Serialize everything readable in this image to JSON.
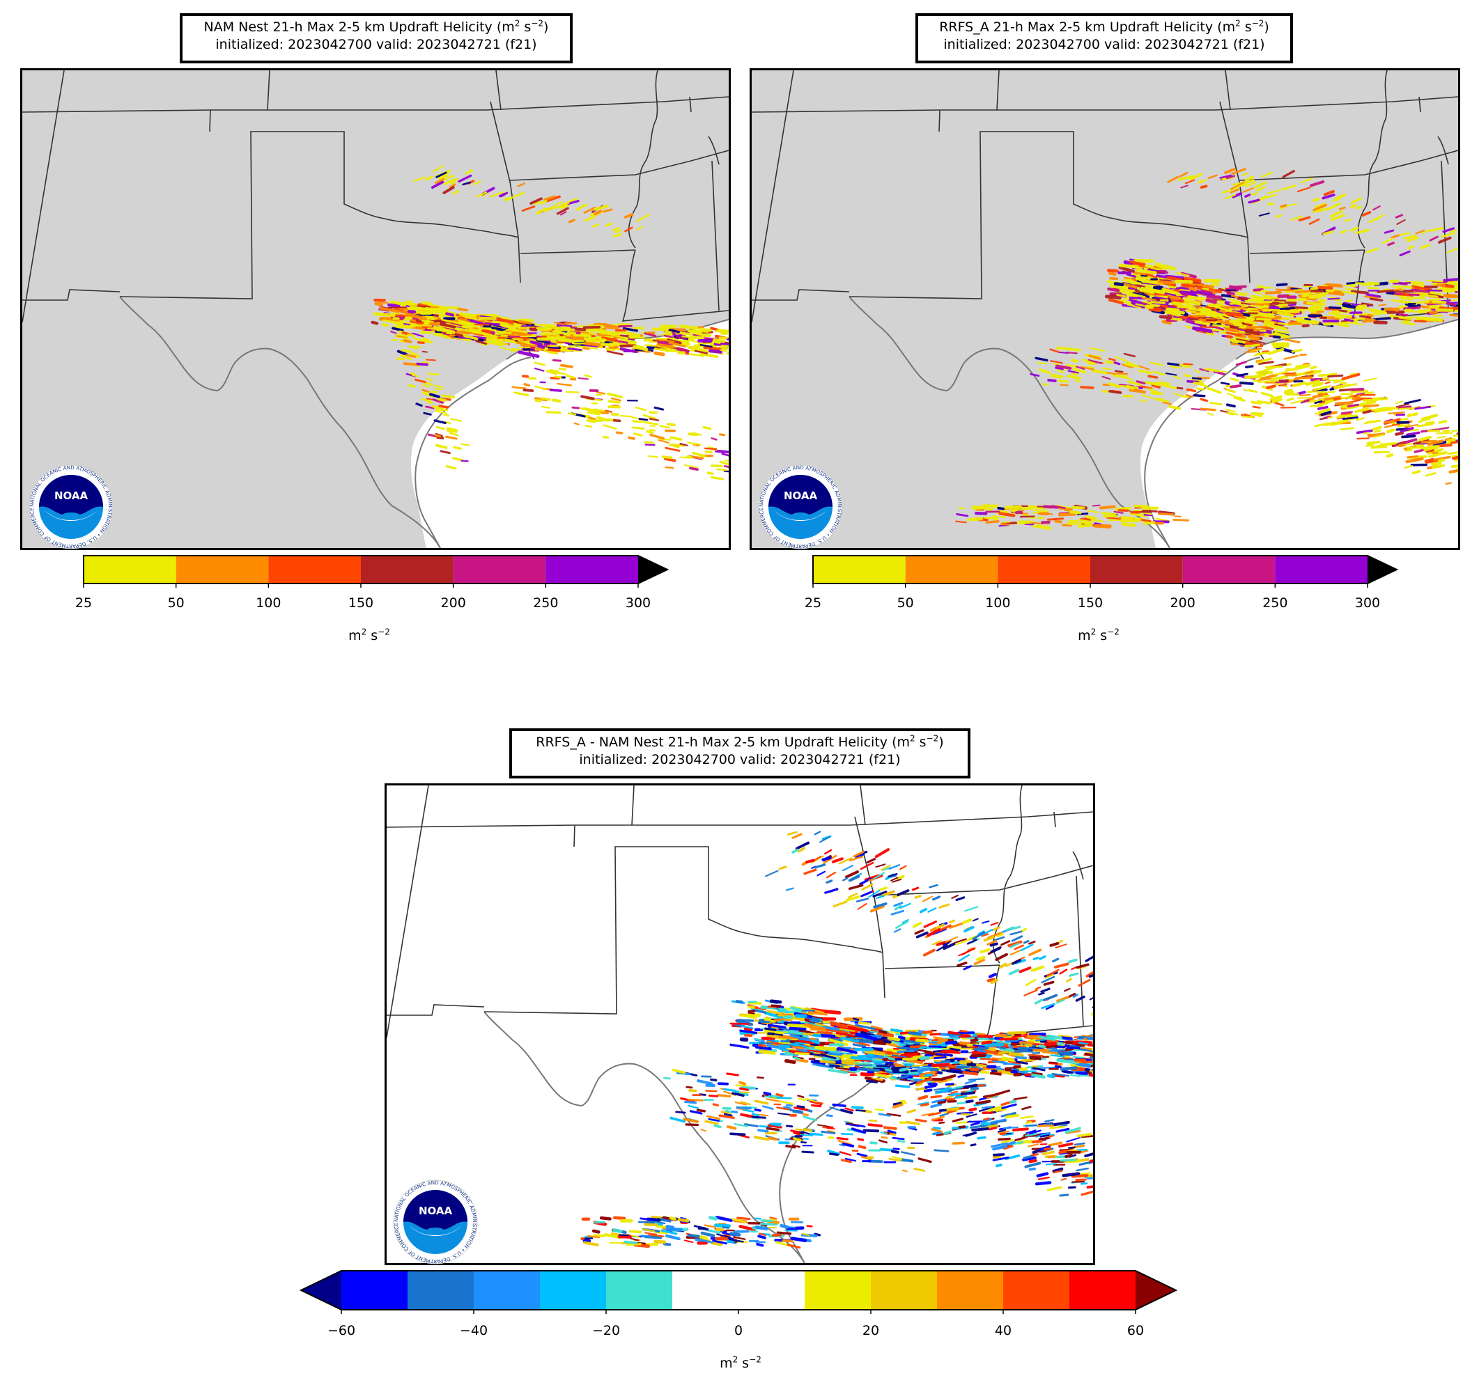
{
  "panels": {
    "nam": {
      "title_line1_pre": "NAM Nest 21-h Max 2-5 km Updraft Helicity (m",
      "title_sup1": "2",
      "title_mid": " s",
      "title_sup2": "−2",
      "title_post": ")",
      "title_line2": "initialized: 2023042700 valid: 2023042721 (f21)"
    },
    "rrfs": {
      "title_line1_pre": "RRFS_A 21-h Max 2-5 km Updraft Helicity (m",
      "title_sup1": "2",
      "title_mid": " s",
      "title_sup2": "−2",
      "title_post": ")",
      "title_line2": "initialized: 2023042700 valid: 2023042721 (f21)"
    },
    "diff": {
      "title_line1_pre": "RRFS_A - NAM Nest 21-h Max 2-5 km Updraft Helicity (m",
      "title_sup1": "2",
      "title_mid": " s",
      "title_sup2": "−2",
      "title_post": ")",
      "title_line2": "initialized: 2023042700 valid: 2023042721 (f21)"
    }
  },
  "colorbars": {
    "uh": {
      "bounds": [
        "25",
        "50",
        "100",
        "150",
        "200",
        "250",
        "300"
      ],
      "colors": [
        "#ecec00",
        "#ff8c00",
        "#ff4500",
        "#b22222",
        "#c71585",
        "#9400d3"
      ],
      "extend_color": "#000000",
      "unit_pre": "m",
      "unit_sup1": "2",
      "unit_mid": " s",
      "unit_sup2": "−2"
    },
    "diff": {
      "ticks": [
        "−60",
        "−40",
        "−20",
        "0",
        "20",
        "40",
        "60"
      ],
      "colors": [
        "#0000ff",
        "#1874cd",
        "#1e90ff",
        "#00bfff",
        "#40e0d0",
        "#ffffff",
        "#ffffff",
        "#ecec00",
        "#eec900",
        "#ff8c00",
        "#ff4500",
        "#ff0000"
      ],
      "low_extend": "#00008b",
      "high_extend": "#8b0000",
      "unit_pre": "m",
      "unit_sup1": "2",
      "unit_mid": " s",
      "unit_sup2": "−2"
    }
  },
  "logo": {
    "text": "NOAA",
    "ring_text": "NATIONAL OCEANIC AND ATMOSPHERIC ADMINISTRATION • U.S. DEPARTMENT OF COMMERCE"
  },
  "colors": {
    "land": "#d3d3d3",
    "water": "#ffffff",
    "border": "#333333",
    "coast": "#777777"
  }
}
